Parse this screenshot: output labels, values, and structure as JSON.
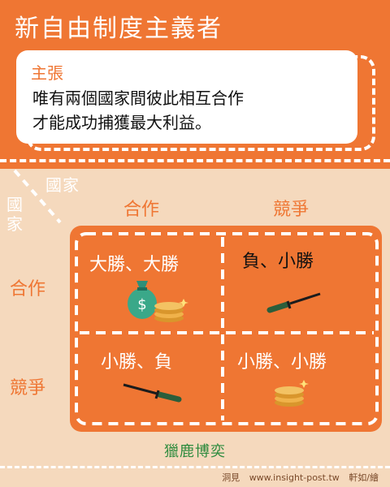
{
  "header": {
    "title": "新自由制度主義者"
  },
  "claim": {
    "heading": "主張",
    "line1": "唯有兩個國家間彼此相互合作",
    "line2": "才能成功捕獲最大利益。"
  },
  "axes": {
    "top_label": "國家",
    "left_label": "國家",
    "columns": [
      "合作",
      "競爭"
    ],
    "rows": [
      "合作",
      "競爭"
    ]
  },
  "matrix": {
    "cells": [
      {
        "text": "大勝、大勝"
      },
      {
        "text": "負、小勝"
      },
      {
        "text": "小勝、負"
      },
      {
        "text": "小勝、小勝"
      }
    ]
  },
  "caption": "獵鹿博奕",
  "footer": {
    "source": "洞見",
    "site": "www.insight-post.tw",
    "author": "軒如/繪"
  },
  "colors": {
    "orange": "#ef7633",
    "cream": "#f5d9bd",
    "green": "#2e8b3e",
    "white": "#ffffff"
  }
}
